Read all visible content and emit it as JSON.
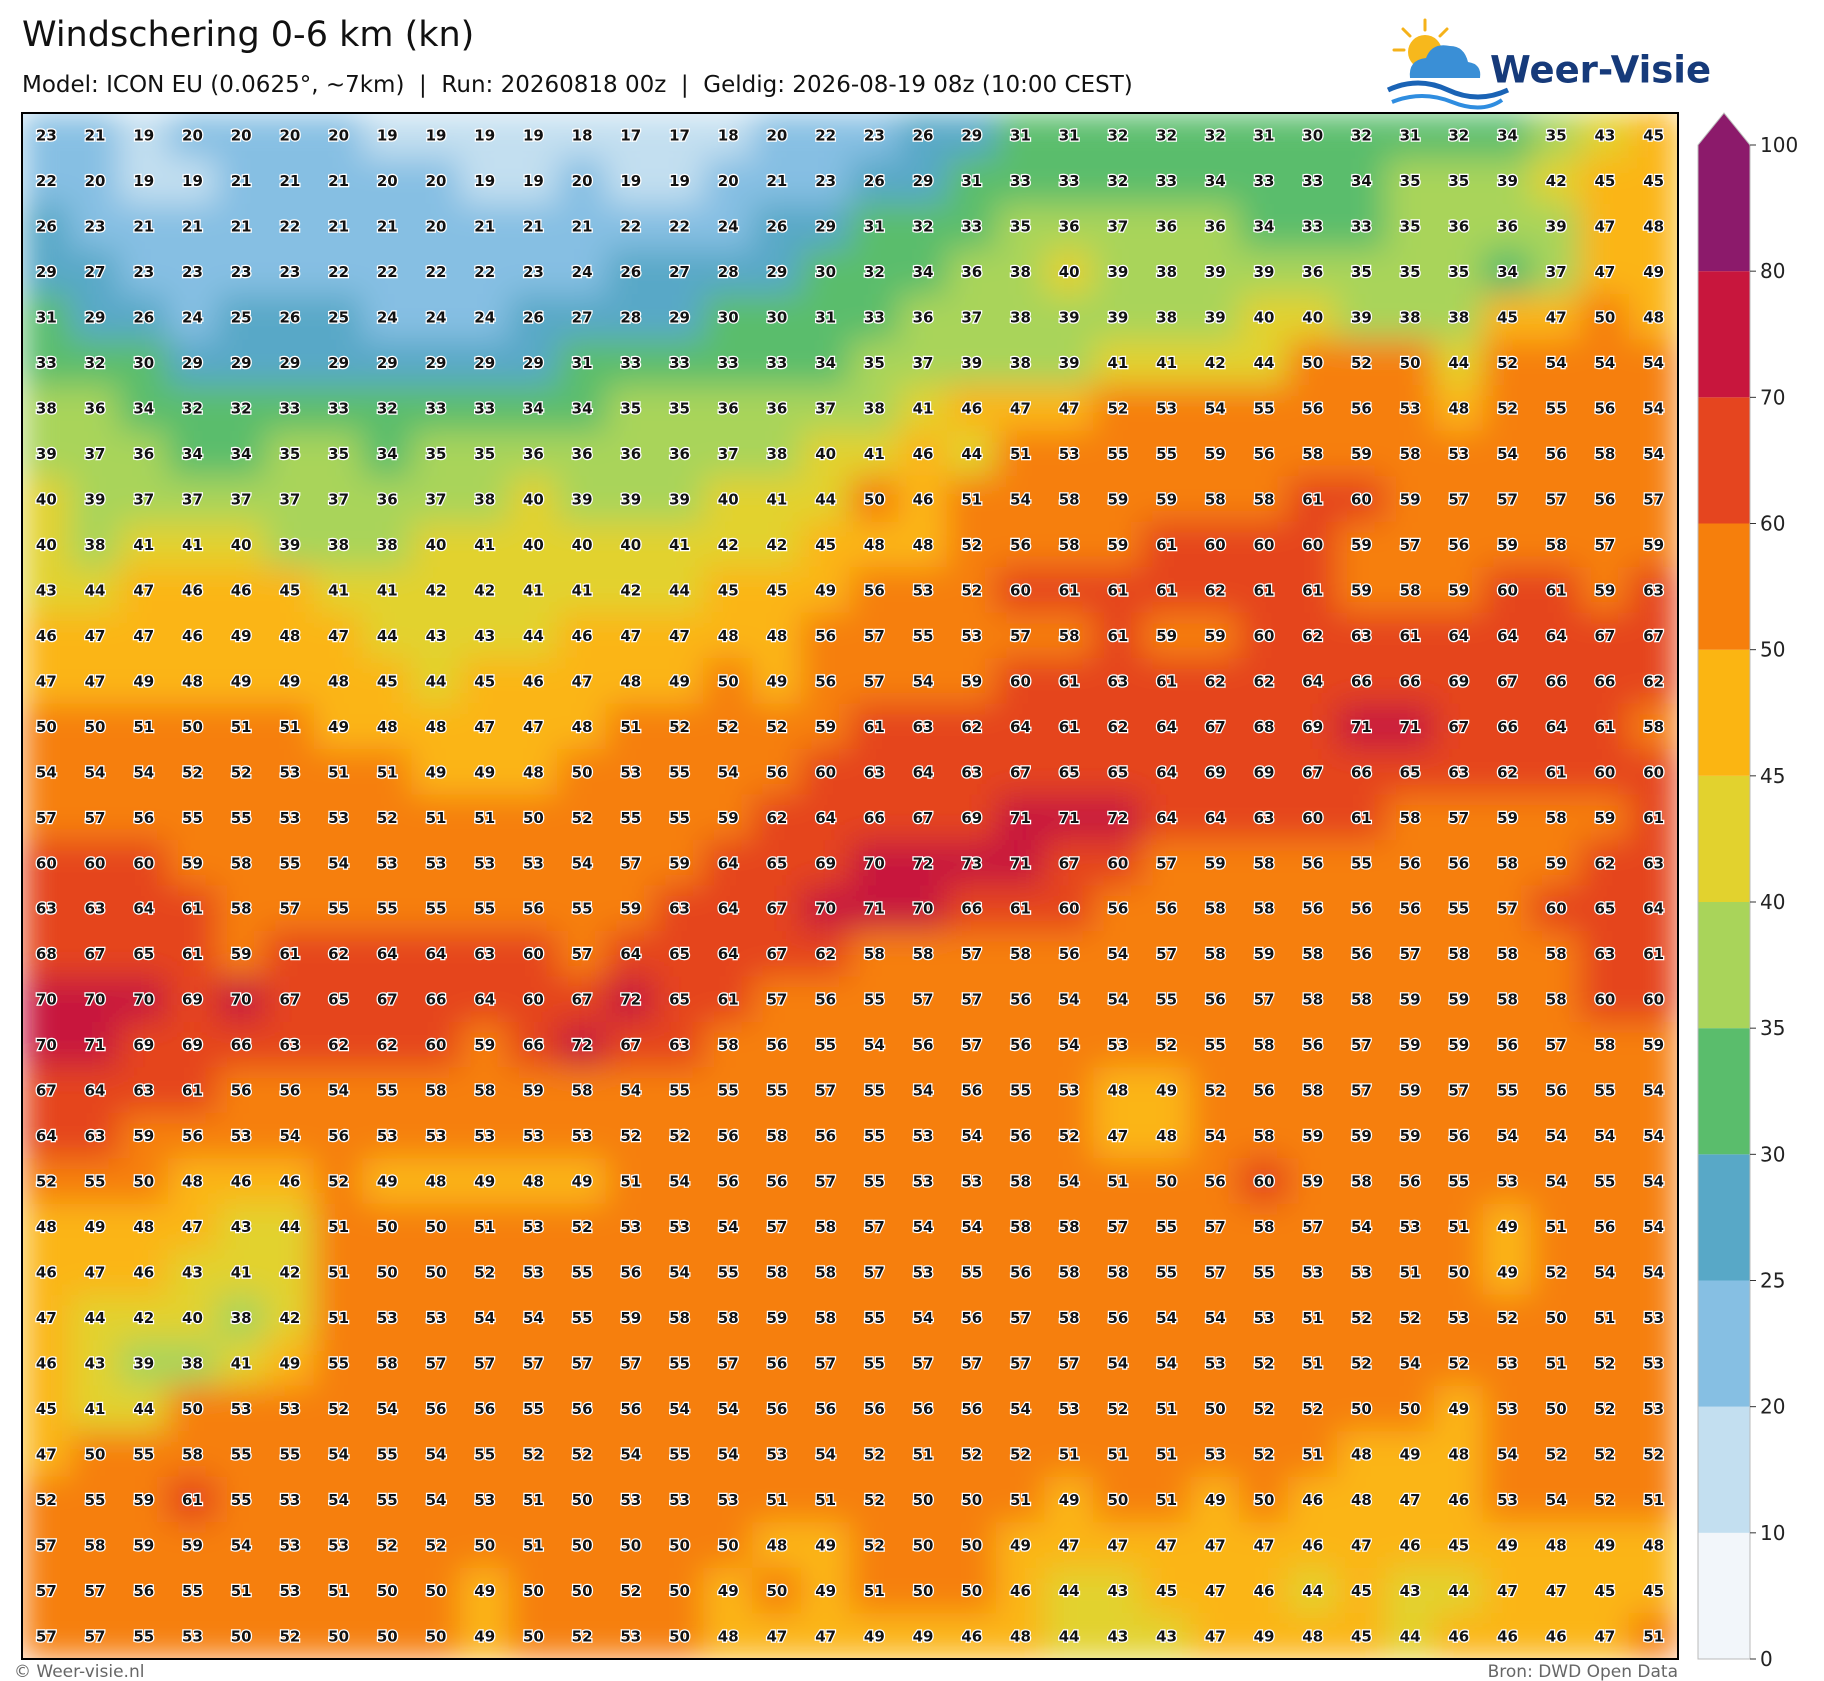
{
  "header": {
    "title": "Windschering 0-6 km (kn)",
    "subtitle": "Model: ICON EU (0.0625°, ~7km)  |  Run: 20260818 00z  |  Geldig: 2026-08-19 08z (10:00 CEST)"
  },
  "logo": {
    "text": "Weer-Visie"
  },
  "map": {
    "grid": [
      [
        23,
        21,
        19,
        20,
        20,
        20,
        20,
        19,
        19,
        19,
        19,
        18,
        17,
        17,
        18,
        20,
        22,
        23,
        26,
        29,
        31,
        31,
        32,
        32,
        32,
        31,
        30,
        32,
        31,
        32,
        34,
        35,
        43,
        45
      ],
      [
        22,
        20,
        19,
        19,
        21,
        21,
        21,
        20,
        20,
        19,
        19,
        20,
        19,
        19,
        20,
        21,
        23,
        26,
        29,
        31,
        33,
        33,
        32,
        33,
        34,
        33,
        33,
        34,
        35,
        35,
        39,
        42,
        45,
        45
      ],
      [
        26,
        23,
        21,
        21,
        21,
        22,
        21,
        21,
        20,
        21,
        21,
        21,
        22,
        22,
        24,
        26,
        29,
        31,
        32,
        33,
        35,
        36,
        37,
        36,
        36,
        34,
        33,
        33,
        35,
        36,
        36,
        39,
        47,
        48
      ],
      [
        29,
        27,
        23,
        23,
        23,
        23,
        22,
        22,
        22,
        22,
        23,
        24,
        26,
        27,
        28,
        29,
        30,
        32,
        34,
        36,
        38,
        40,
        39,
        38,
        39,
        39,
        36,
        35,
        35,
        35,
        34,
        37,
        47,
        49
      ],
      [
        31,
        29,
        26,
        24,
        25,
        26,
        25,
        24,
        24,
        24,
        26,
        27,
        28,
        29,
        30,
        30,
        31,
        33,
        36,
        37,
        38,
        39,
        39,
        38,
        39,
        40,
        40,
        39,
        38,
        38,
        45,
        47,
        50,
        48
      ],
      [
        33,
        32,
        30,
        29,
        29,
        29,
        29,
        29,
        29,
        29,
        29,
        31,
        33,
        33,
        33,
        33,
        34,
        35,
        37,
        39,
        38,
        39,
        41,
        41,
        42,
        44,
        50,
        52,
        50,
        44,
        52,
        54,
        54,
        54
      ],
      [
        38,
        36,
        34,
        32,
        32,
        33,
        33,
        32,
        33,
        33,
        34,
        34,
        35,
        35,
        36,
        36,
        37,
        38,
        41,
        46,
        47,
        47,
        52,
        53,
        54,
        55,
        56,
        56,
        53,
        48,
        52,
        55,
        56,
        54
      ],
      [
        39,
        37,
        36,
        34,
        34,
        35,
        35,
        34,
        35,
        35,
        36,
        36,
        36,
        36,
        37,
        38,
        40,
        41,
        46,
        44,
        51,
        53,
        55,
        55,
        59,
        56,
        58,
        59,
        58,
        53,
        54,
        56,
        58,
        54
      ],
      [
        40,
        39,
        37,
        37,
        37,
        37,
        37,
        36,
        37,
        38,
        40,
        39,
        39,
        39,
        40,
        41,
        44,
        50,
        46,
        51,
        54,
        58,
        59,
        59,
        58,
        58,
        61,
        60,
        59,
        57,
        57,
        57,
        56,
        57
      ],
      [
        40,
        38,
        41,
        41,
        40,
        39,
        38,
        38,
        40,
        41,
        40,
        40,
        40,
        41,
        42,
        42,
        45,
        48,
        48,
        52,
        56,
        58,
        59,
        61,
        60,
        60,
        60,
        59,
        57,
        56,
        59,
        58,
        57,
        59
      ],
      [
        43,
        44,
        47,
        46,
        46,
        45,
        41,
        41,
        42,
        42,
        41,
        41,
        42,
        44,
        45,
        45,
        49,
        56,
        53,
        52,
        60,
        61,
        61,
        61,
        62,
        61,
        61,
        59,
        58,
        59,
        60,
        61,
        59,
        63
      ],
      [
        46,
        47,
        47,
        46,
        49,
        48,
        47,
        44,
        43,
        43,
        44,
        46,
        47,
        47,
        48,
        48,
        56,
        57,
        55,
        53,
        57,
        58,
        61,
        59,
        59,
        60,
        62,
        63,
        61,
        64,
        64,
        64,
        67,
        67
      ],
      [
        47,
        47,
        49,
        48,
        49,
        49,
        48,
        45,
        44,
        45,
        46,
        47,
        48,
        49,
        50,
        49,
        56,
        57,
        54,
        59,
        60,
        61,
        63,
        61,
        62,
        62,
        64,
        66,
        66,
        69,
        67,
        66,
        66,
        62
      ],
      [
        50,
        50,
        51,
        50,
        51,
        51,
        49,
        48,
        48,
        47,
        47,
        48,
        51,
        52,
        52,
        52,
        59,
        61,
        63,
        62,
        64,
        61,
        62,
        64,
        67,
        68,
        69,
        71,
        71,
        67,
        66,
        64,
        61,
        58
      ],
      [
        54,
        54,
        54,
        52,
        52,
        53,
        51,
        51,
        49,
        49,
        48,
        50,
        53,
        55,
        54,
        56,
        60,
        63,
        64,
        63,
        67,
        65,
        65,
        64,
        69,
        69,
        67,
        66,
        65,
        63,
        62,
        61,
        60,
        60
      ],
      [
        57,
        57,
        56,
        55,
        55,
        53,
        53,
        52,
        51,
        51,
        50,
        52,
        55,
        55,
        59,
        62,
        64,
        66,
        67,
        69,
        71,
        71,
        72,
        64,
        64,
        63,
        60,
        61,
        58,
        57,
        59,
        58,
        59,
        61
      ],
      [
        60,
        60,
        60,
        59,
        58,
        55,
        54,
        53,
        53,
        53,
        53,
        54,
        57,
        59,
        64,
        65,
        69,
        70,
        72,
        73,
        71,
        67,
        60,
        57,
        59,
        58,
        56,
        55,
        56,
        56,
        58,
        59,
        62,
        63
      ],
      [
        63,
        63,
        64,
        61,
        58,
        57,
        55,
        55,
        55,
        55,
        56,
        55,
        59,
        63,
        64,
        67,
        70,
        71,
        70,
        66,
        61,
        60,
        56,
        56,
        58,
        58,
        56,
        56,
        56,
        55,
        57,
        60,
        65,
        64
      ],
      [
        68,
        67,
        65,
        61,
        59,
        61,
        62,
        64,
        64,
        63,
        60,
        57,
        64,
        65,
        64,
        67,
        62,
        58,
        58,
        57,
        58,
        56,
        54,
        57,
        58,
        59,
        58,
        56,
        57,
        58,
        58,
        58,
        63,
        61
      ],
      [
        70,
        70,
        70,
        69,
        70,
        67,
        65,
        67,
        66,
        64,
        60,
        67,
        72,
        65,
        61,
        57,
        56,
        55,
        57,
        57,
        56,
        54,
        54,
        55,
        56,
        57,
        58,
        58,
        59,
        59,
        58,
        58,
        60,
        60
      ],
      [
        70,
        71,
        69,
        69,
        66,
        63,
        62,
        62,
        60,
        59,
        66,
        72,
        67,
        63,
        58,
        56,
        55,
        54,
        56,
        57,
        56,
        54,
        53,
        52,
        55,
        58,
        56,
        57,
        59,
        59,
        56,
        57,
        58,
        59
      ],
      [
        67,
        64,
        63,
        61,
        56,
        56,
        54,
        55,
        58,
        58,
        59,
        58,
        54,
        55,
        55,
        55,
        57,
        55,
        54,
        56,
        55,
        53,
        48,
        49,
        52,
        56,
        58,
        57,
        59,
        57,
        55,
        56,
        55,
        54
      ],
      [
        64,
        63,
        59,
        56,
        53,
        54,
        56,
        53,
        53,
        53,
        53,
        53,
        52,
        52,
        56,
        58,
        56,
        55,
        53,
        54,
        56,
        52,
        47,
        48,
        54,
        58,
        59,
        59,
        59,
        56,
        54,
        54,
        54,
        54
      ],
      [
        52,
        55,
        50,
        48,
        46,
        46,
        52,
        49,
        48,
        49,
        48,
        49,
        51,
        54,
        56,
        56,
        57,
        55,
        53,
        53,
        58,
        54,
        51,
        50,
        56,
        60,
        59,
        58,
        56,
        55,
        53,
        54,
        55,
        54
      ],
      [
        48,
        49,
        48,
        47,
        43,
        44,
        51,
        50,
        50,
        51,
        53,
        52,
        53,
        53,
        54,
        57,
        58,
        57,
        54,
        54,
        58,
        58,
        57,
        55,
        57,
        58,
        57,
        54,
        53,
        51,
        49,
        51,
        56,
        54
      ],
      [
        46,
        47,
        46,
        43,
        41,
        42,
        51,
        50,
        50,
        52,
        53,
        55,
        56,
        54,
        55,
        58,
        58,
        57,
        53,
        55,
        56,
        58,
        58,
        55,
        57,
        55,
        53,
        53,
        51,
        50,
        49,
        52,
        54,
        54
      ],
      [
        47,
        44,
        42,
        40,
        38,
        42,
        51,
        53,
        53,
        54,
        54,
        55,
        59,
        58,
        58,
        59,
        58,
        55,
        54,
        56,
        57,
        58,
        56,
        54,
        54,
        53,
        51,
        52,
        52,
        53,
        52,
        50,
        51,
        53
      ],
      [
        46,
        43,
        39,
        38,
        41,
        49,
        55,
        58,
        57,
        57,
        57,
        57,
        57,
        55,
        57,
        56,
        57,
        55,
        57,
        57,
        57,
        57,
        54,
        54,
        53,
        52,
        51,
        52,
        54,
        52,
        53,
        51,
        52,
        53
      ],
      [
        45,
        41,
        44,
        50,
        53,
        53,
        52,
        54,
        56,
        56,
        55,
        56,
        56,
        54,
        54,
        56,
        56,
        56,
        56,
        56,
        54,
        53,
        52,
        51,
        50,
        52,
        52,
        50,
        50,
        49,
        53,
        50,
        52,
        53
      ],
      [
        47,
        50,
        55,
        58,
        55,
        55,
        54,
        55,
        54,
        55,
        52,
        52,
        54,
        55,
        54,
        53,
        54,
        52,
        51,
        52,
        52,
        51,
        51,
        51,
        53,
        52,
        51,
        48,
        49,
        48,
        54,
        52,
        52,
        52
      ],
      [
        52,
        55,
        59,
        61,
        55,
        53,
        54,
        55,
        54,
        53,
        51,
        50,
        53,
        53,
        53,
        51,
        51,
        52,
        50,
        50,
        51,
        49,
        50,
        51,
        49,
        50,
        46,
        48,
        47,
        46,
        53,
        54,
        52,
        51
      ],
      [
        57,
        58,
        59,
        59,
        54,
        53,
        53,
        52,
        52,
        50,
        51,
        50,
        50,
        50,
        50,
        48,
        49,
        52,
        50,
        50,
        49,
        47,
        47,
        47,
        47,
        47,
        46,
        47,
        46,
        45,
        49,
        48,
        49,
        48
      ],
      [
        57,
        57,
        56,
        55,
        51,
        53,
        51,
        50,
        50,
        49,
        50,
        50,
        52,
        50,
        49,
        50,
        49,
        51,
        50,
        50,
        46,
        44,
        43,
        45,
        47,
        46,
        44,
        45,
        43,
        44,
        47,
        47,
        45,
        45
      ],
      [
        57,
        57,
        55,
        53,
        50,
        52,
        50,
        50,
        50,
        49,
        50,
        52,
        53,
        50,
        48,
        47,
        47,
        49,
        49,
        46,
        48,
        44,
        43,
        43,
        47,
        49,
        48,
        45,
        44,
        46,
        46,
        46,
        47,
        51
      ]
    ],
    "colorbar": {
      "levels": [
        0,
        10,
        20,
        25,
        30,
        35,
        40,
        45,
        50,
        60,
        70,
        80,
        100
      ],
      "colors": [
        "#f2f6fa",
        "#c3dff0",
        "#86bfe3",
        "#58a8c7",
        "#5abd6c",
        "#a9d45a",
        "#e2d22e",
        "#fbb512",
        "#f67f0c",
        "#e5451f",
        "#c8163d",
        "#8c1a6b"
      ]
    }
  },
  "footer": {
    "left": "© Weer-visie.nl",
    "right": "Bron: DWD Open Data"
  }
}
